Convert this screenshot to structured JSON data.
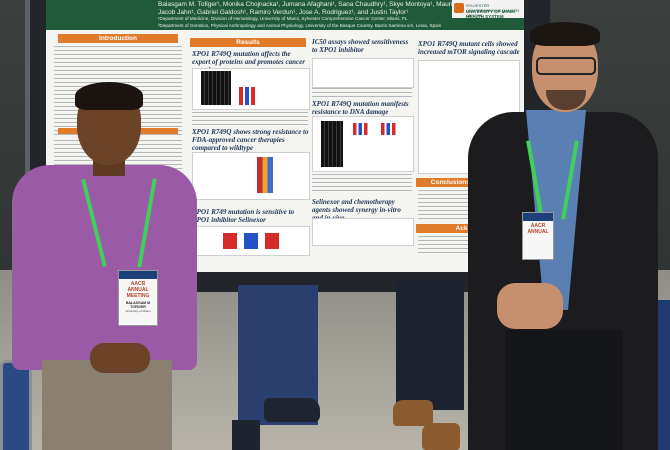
{
  "poster": {
    "header_line_1": "Balasgam M. Tofiger¹, Monika Chojnacka¹, Jumana Afaghani¹, Sana Chaudhry¹, Skye Montoya¹, Maurizio Affer",
    "header_line_2": "Jacob Jahn¹, Gabriel Galdosh¹, Ramiro Verdun¹, Jose A. Rodriguez¹, and Justin Taylor¹",
    "header_line_3": "¹Department of Medicine, Division of Hematology, University of Miami, Sylvester Comprehensive Cancer Center, Miami, FL",
    "header_line_4": "²Department of Genetics, Physical Anthropology and Animal Physiology, University of the Basque Country, Barrio Sarriena s/n, Leioa, Spain",
    "logo_line_1": "SYLVESTER COMPREHENSIVE CANCER CENTER",
    "logo_line_2": "UNIVERSITY OF MIAMI HEALTH SYSTEM",
    "intro_title": "Introduction",
    "results_title": "Results",
    "conclusions_title": "Conclusions and Future",
    "ack_title": "Acknow",
    "panel_1": "XPO1 R749Q mutation affects the export of proteins and promotes cancer growth",
    "panel_2": "IC50 assays showed sensitiveness to XPO1 inhibitor",
    "panel_3": "XPO1 R749Q mutant cells showed increased mTOR signaling cascade",
    "panel_4": "XPO1 R749Q mutation manifests resistance to DNA damage",
    "panel_5": "XPO1 R749Q shows strong resistance to FDA-approved cancer therapies compared to wildtype",
    "panel_6": "XPO1 R749 mutation is sensitive to XPO1 inhibitor Selinexor",
    "panel_7": "Selinexor and chemotherapy agents showed synergy in-vitro and in-vivo"
  },
  "badge_left": {
    "event": "AACR ANNUAL MEETING",
    "name": "BALASGAM M TOFIGER",
    "sub": "University of Miami"
  },
  "badge_right": {
    "event": "AACR ANNUAL"
  },
  "colors": {
    "header_green": "#1f5a3a",
    "section_orange": "#e07b2a",
    "panel_title_navy": "#1e3556",
    "shirt_purple": "#9a5aa6",
    "lanyard_green": "#3fcf5a"
  }
}
